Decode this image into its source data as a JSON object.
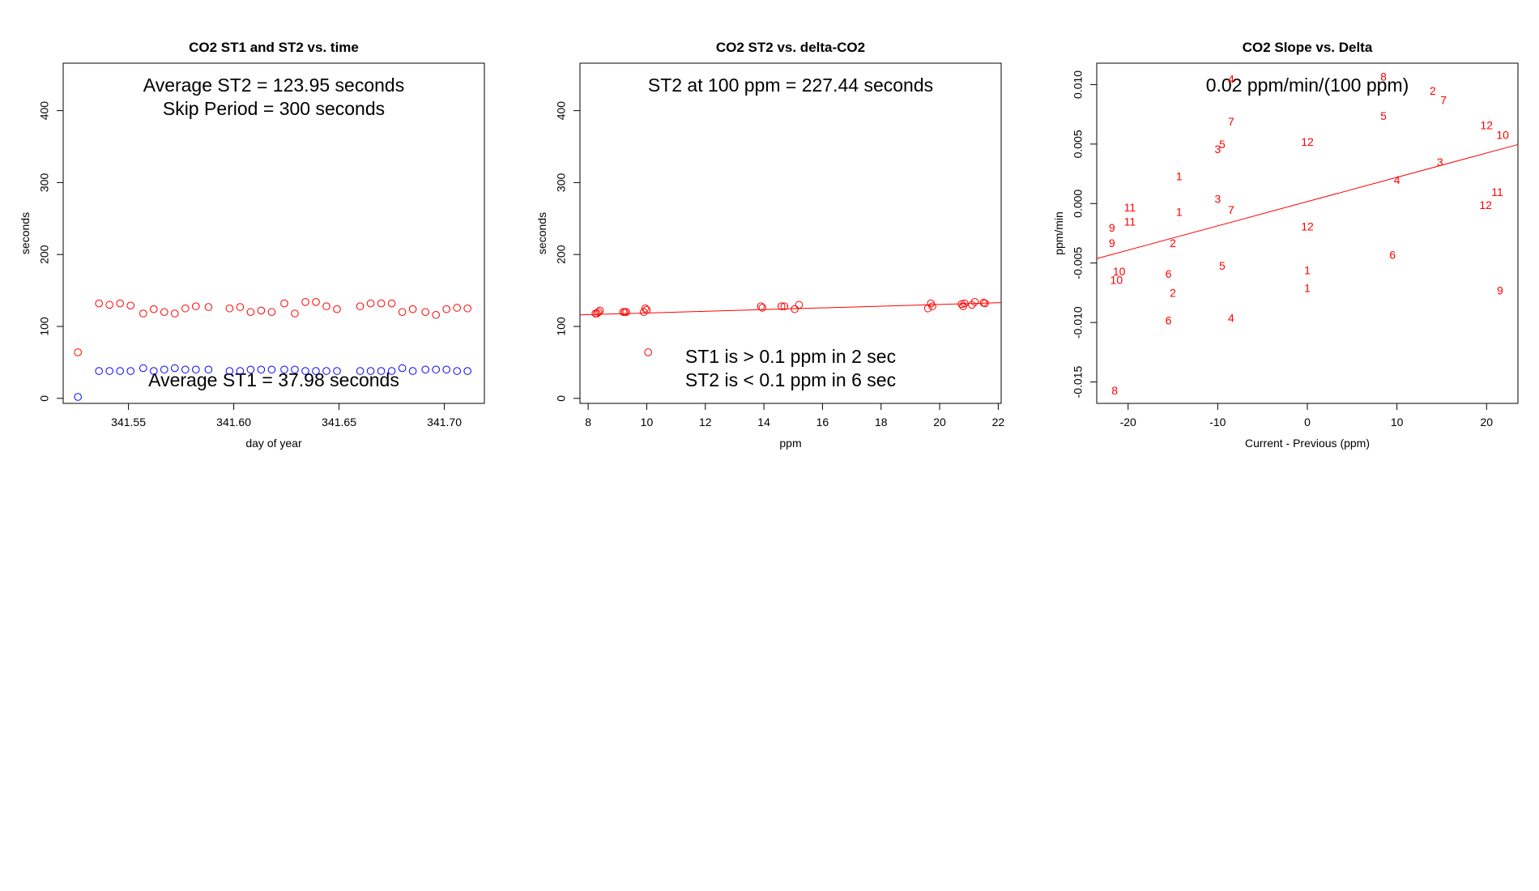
{
  "colors": {
    "red": "#ff0000",
    "blue": "#0000ff",
    "axis": "#000000",
    "background": "#ffffff"
  },
  "chart_data": [
    {
      "type": "scatter",
      "title": "CO2 ST1 and ST2 vs. time",
      "xlabel": "day of year",
      "ylabel": "seconds",
      "xlim": [
        341.519,
        341.719
      ],
      "ylim": [
        -7,
        466
      ],
      "xticks": [
        341.55,
        341.6,
        341.65,
        341.7
      ],
      "xtick_labels": [
        "341.55",
        "341.60",
        "341.65",
        "341.70"
      ],
      "yticks": [
        0,
        100,
        200,
        300,
        400
      ],
      "ytick_labels": [
        "0",
        "100",
        "200",
        "300",
        "400"
      ],
      "grid": false,
      "marker": "open-circle",
      "annotations": [
        "Average ST2 =  123.95  seconds",
        "Skip Period =  300  seconds",
        "Average ST1 =  37.98  seconds"
      ],
      "series": [
        {
          "color": "#ff0000",
          "x": [
            341.526,
            341.536,
            341.541,
            341.546,
            341.551,
            341.557,
            341.562,
            341.567,
            341.572,
            341.577,
            341.582,
            341.588,
            341.598,
            341.603,
            341.608,
            341.613,
            341.618,
            341.624,
            341.629,
            341.634,
            341.639,
            341.644,
            341.649,
            341.66,
            341.665,
            341.67,
            341.675,
            341.68,
            341.685,
            341.691,
            341.696,
            341.701,
            341.706,
            341.711
          ],
          "y": [
            64,
            132,
            130,
            132,
            129,
            118,
            124,
            120,
            118,
            125,
            128,
            127,
            125,
            127,
            120,
            122,
            120,
            132,
            118,
            134,
            134,
            128,
            124,
            128,
            132,
            132,
            132,
            120,
            124,
            120,
            116,
            124,
            126,
            125
          ]
        },
        {
          "color": "#0000ff",
          "x": [
            341.526,
            341.536,
            341.541,
            341.546,
            341.551,
            341.557,
            341.562,
            341.567,
            341.572,
            341.577,
            341.582,
            341.588,
            341.598,
            341.603,
            341.608,
            341.613,
            341.618,
            341.624,
            341.629,
            341.634,
            341.639,
            341.644,
            341.649,
            341.66,
            341.665,
            341.67,
            341.675,
            341.68,
            341.685,
            341.691,
            341.696,
            341.701,
            341.706,
            341.711
          ],
          "y": [
            2,
            38,
            38,
            38,
            38,
            42,
            38,
            40,
            42,
            40,
            40,
            40,
            38,
            38,
            40,
            40,
            40,
            40,
            40,
            38,
            38,
            38,
            38,
            38,
            38,
            38,
            38,
            42,
            38,
            40,
            40,
            40,
            38,
            38
          ]
        }
      ]
    },
    {
      "type": "scatter",
      "title": "CO2 ST2 vs. delta-CO2",
      "xlabel": "ppm",
      "ylabel": "seconds",
      "xlim": [
        7.72,
        22.1
      ],
      "ylim": [
        -7,
        466
      ],
      "xticks": [
        8,
        10,
        12,
        14,
        16,
        18,
        20,
        22
      ],
      "xtick_labels": [
        "8",
        "10",
        "12",
        "14",
        "16",
        "18",
        "20",
        "22"
      ],
      "yticks": [
        0,
        100,
        200,
        300,
        400
      ],
      "ytick_labels": [
        "0",
        "100",
        "200",
        "300",
        "400"
      ],
      "grid": false,
      "marker": "open-circle",
      "annotations": [
        "ST2 at 100 ppm =  227.44  seconds",
        "ST1 is > 0.1 ppm in 2 sec",
        "ST2 is < 0.1 ppm in 6 sec"
      ],
      "fit_line": {
        "color": "#ff0000",
        "x": [
          7.72,
          22.1
        ],
        "y": [
          116,
          133
        ]
      },
      "series": [
        {
          "color": "#ff0000",
          "x": [
            8.25,
            8.3,
            8.35,
            8.4,
            9.2,
            9.25,
            9.3,
            9.9,
            9.95,
            10.0,
            10.05,
            13.9,
            13.95,
            14.6,
            14.7,
            15.05,
            15.2,
            19.6,
            19.7,
            19.75,
            20.75,
            20.8,
            20.85,
            21.1,
            21.2,
            21.5,
            21.55
          ],
          "y": [
            118,
            118,
            120,
            122,
            120,
            120,
            120,
            120,
            125,
            123,
            64,
            128,
            126,
            128,
            128,
            124,
            130,
            125,
            132,
            128,
            131,
            128,
            132,
            130,
            134,
            133,
            132
          ]
        }
      ]
    },
    {
      "type": "scatter",
      "title": "CO2 Slope vs. Delta",
      "xlabel": "Current - Previous (ppm)",
      "ylabel": "ppm/min",
      "xlim": [
        -23.5,
        23.5
      ],
      "ylim": [
        -0.0168,
        0.0118
      ],
      "xticks": [
        -20,
        -10,
        0,
        10,
        20
      ],
      "xtick_labels": [
        "-20",
        "-10",
        "0",
        "10",
        "20"
      ],
      "yticks": [
        -0.015,
        -0.01,
        -0.005,
        0.0,
        0.005,
        0.01
      ],
      "ytick_labels": [
        "-0.015",
        "-0.010",
        "-0.005",
        "0.000",
        "0.005",
        "0.010"
      ],
      "grid": false,
      "marker": "text-labels",
      "annotations": [
        "0.02  ppm/min/(100 ppm)"
      ],
      "fit_line": {
        "color": "#ff0000",
        "x": [
          -23.5,
          23.5
        ],
        "y": [
          -0.00463,
          0.00496
        ]
      },
      "points": [
        {
          "x": -21.5,
          "y": -0.0158,
          "label": "8"
        },
        {
          "x": -21.8,
          "y": -0.0021,
          "label": "9"
        },
        {
          "x": -21.8,
          "y": -0.0034,
          "label": "9"
        },
        {
          "x": -21.0,
          "y": -0.0058,
          "label": "10"
        },
        {
          "x": -21.3,
          "y": -0.0065,
          "label": "10"
        },
        {
          "x": -19.8,
          "y": -0.0004,
          "label": "11"
        },
        {
          "x": -19.8,
          "y": -0.0016,
          "label": "11"
        },
        {
          "x": -14.3,
          "y": 0.0022,
          "label": "1"
        },
        {
          "x": -14.3,
          "y": -0.0008,
          "label": "1"
        },
        {
          "x": -15.0,
          "y": -0.0034,
          "label": "2"
        },
        {
          "x": -15.0,
          "y": -0.0076,
          "label": "2"
        },
        {
          "x": -15.5,
          "y": -0.006,
          "label": "6"
        },
        {
          "x": -15.5,
          "y": -0.0099,
          "label": "6"
        },
        {
          "x": -10.0,
          "y": 0.0045,
          "label": "3"
        },
        {
          "x": -10.0,
          "y": 0.0003,
          "label": "3"
        },
        {
          "x": -9.5,
          "y": 0.0049,
          "label": "5"
        },
        {
          "x": -9.5,
          "y": -0.0053,
          "label": "5"
        },
        {
          "x": -8.5,
          "y": 0.0068,
          "label": "7"
        },
        {
          "x": -8.5,
          "y": -0.0006,
          "label": "7"
        },
        {
          "x": -8.5,
          "y": -0.0097,
          "label": "4"
        },
        {
          "x": -8.5,
          "y": 0.0104,
          "label": "4"
        },
        {
          "x": 0.0,
          "y": 0.0051,
          "label": "12"
        },
        {
          "x": 0.0,
          "y": -0.002,
          "label": "12"
        },
        {
          "x": 0.0,
          "y": -0.0057,
          "label": "1"
        },
        {
          "x": 0.0,
          "y": -0.0072,
          "label": "1"
        },
        {
          "x": 8.5,
          "y": 0.0106,
          "label": "8"
        },
        {
          "x": 8.5,
          "y": 0.0073,
          "label": "5"
        },
        {
          "x": 9.5,
          "y": -0.0044,
          "label": "6"
        },
        {
          "x": 10.0,
          "y": 0.0019,
          "label": "4"
        },
        {
          "x": 14.0,
          "y": 0.0094,
          "label": "2"
        },
        {
          "x": 15.2,
          "y": 0.0086,
          "label": "7"
        },
        {
          "x": 14.8,
          "y": 0.0034,
          "label": "3"
        },
        {
          "x": 20.0,
          "y": 0.0065,
          "label": "12"
        },
        {
          "x": 19.9,
          "y": -0.0002,
          "label": "12"
        },
        {
          "x": 21.8,
          "y": 0.0057,
          "label": "10"
        },
        {
          "x": 21.2,
          "y": 0.0009,
          "label": "11"
        },
        {
          "x": 21.5,
          "y": -0.0074,
          "label": "9"
        }
      ]
    }
  ]
}
